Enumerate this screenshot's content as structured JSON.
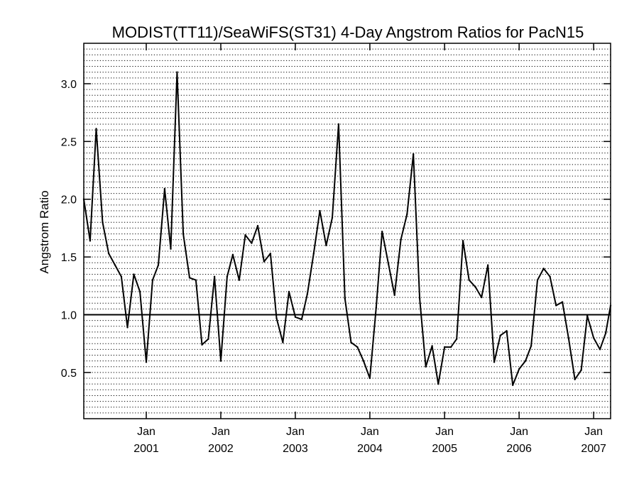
{
  "chart_data": {
    "type": "line",
    "title": "MODIST(TT11)/SeaWiFS(ST31) 4-Day Angstrom Ratios for PacN15",
    "ylabel": "Angstrom Ratio",
    "xlabel": "",
    "xlim": [
      "2000-03-01",
      "2007-03-25"
    ],
    "ylim": [
      0.1,
      3.35
    ],
    "grid": true,
    "reference_line": 1.0,
    "x_tick_labels": [
      {
        "month": "Jan",
        "year": "2001",
        "date": "2001-01-01"
      },
      {
        "month": "Jan",
        "year": "2002",
        "date": "2002-01-01"
      },
      {
        "month": "Jan",
        "year": "2003",
        "date": "2003-01-01"
      },
      {
        "month": "Jan",
        "year": "2004",
        "date": "2004-01-01"
      },
      {
        "month": "Jan",
        "year": "2005",
        "date": "2005-01-01"
      },
      {
        "month": "Jan",
        "year": "2006",
        "date": "2006-01-01"
      },
      {
        "month": "Jan",
        "year": "2007",
        "date": "2007-01-01"
      }
    ],
    "y_ticks": [
      "0.5",
      "1.0",
      "1.5",
      "2.0",
      "2.5",
      "3.0"
    ],
    "series": [
      {
        "x": [
          "2000-03-01",
          "2000-04-01",
          "2000-05-01",
          "2000-06-01",
          "2000-07-01",
          "2000-08-01",
          "2000-09-01",
          "2000-10-01",
          "2000-11-01",
          "2000-12-01",
          "2001-01-01",
          "2001-02-01",
          "2001-03-01",
          "2001-04-01",
          "2001-05-01",
          "2001-06-01",
          "2001-07-01",
          "2001-08-01",
          "2001-09-01",
          "2001-10-01",
          "2001-11-01",
          "2001-12-01",
          "2002-01-01",
          "2002-02-01",
          "2002-03-01",
          "2002-04-01",
          "2002-05-01",
          "2002-06-01",
          "2002-07-01",
          "2002-08-01",
          "2002-09-01",
          "2002-10-01",
          "2002-11-01",
          "2002-12-01",
          "2003-01-01",
          "2003-02-01",
          "2003-03-01",
          "2003-04-01",
          "2003-05-01",
          "2003-06-01",
          "2003-07-01",
          "2003-08-01",
          "2003-09-01",
          "2003-10-01",
          "2003-11-01",
          "2003-12-01",
          "2004-01-01",
          "2004-02-01",
          "2004-03-01",
          "2004-04-01",
          "2004-05-01",
          "2004-06-01",
          "2004-07-01",
          "2004-08-01",
          "2004-09-01",
          "2004-10-01",
          "2004-11-01",
          "2004-12-01",
          "2005-01-01",
          "2005-02-01",
          "2005-03-01",
          "2005-04-01",
          "2005-05-01",
          "2005-06-01",
          "2005-07-01",
          "2005-08-01",
          "2005-09-01",
          "2005-10-01",
          "2005-11-01",
          "2005-12-01",
          "2006-01-01",
          "2006-02-01",
          "2006-03-01",
          "2006-04-01",
          "2006-05-01",
          "2006-06-01",
          "2006-07-01",
          "2006-08-01",
          "2006-09-01",
          "2006-10-01",
          "2006-11-01",
          "2006-12-01",
          "2007-01-01",
          "2007-02-01",
          "2007-03-01",
          "2007-03-25"
        ],
        "values": [
          2.0,
          1.64,
          2.61,
          1.8,
          1.53,
          1.43,
          1.33,
          0.89,
          1.35,
          1.2,
          0.59,
          1.3,
          1.43,
          2.09,
          1.57,
          3.1,
          1.7,
          1.32,
          1.3,
          0.74,
          0.79,
          1.33,
          0.6,
          1.33,
          1.52,
          1.3,
          1.69,
          1.62,
          1.77,
          1.46,
          1.53,
          0.97,
          0.76,
          1.2,
          0.98,
          0.96,
          1.18,
          1.53,
          1.9,
          1.6,
          1.84,
          2.65,
          1.14,
          0.76,
          0.72,
          0.6,
          0.45,
          1.06,
          1.72,
          1.44,
          1.17,
          1.65,
          1.87,
          2.39,
          1.14,
          0.55,
          0.73,
          0.4,
          0.72,
          0.72,
          0.79,
          1.64,
          1.3,
          1.24,
          1.15,
          1.43,
          0.59,
          0.82,
          0.86,
          0.39,
          0.53,
          0.6,
          0.73,
          1.3,
          1.4,
          1.33,
          1.08,
          1.11,
          0.79,
          0.44,
          0.52,
          0.99,
          0.8,
          0.7,
          0.84,
          1.08
        ]
      }
    ]
  }
}
